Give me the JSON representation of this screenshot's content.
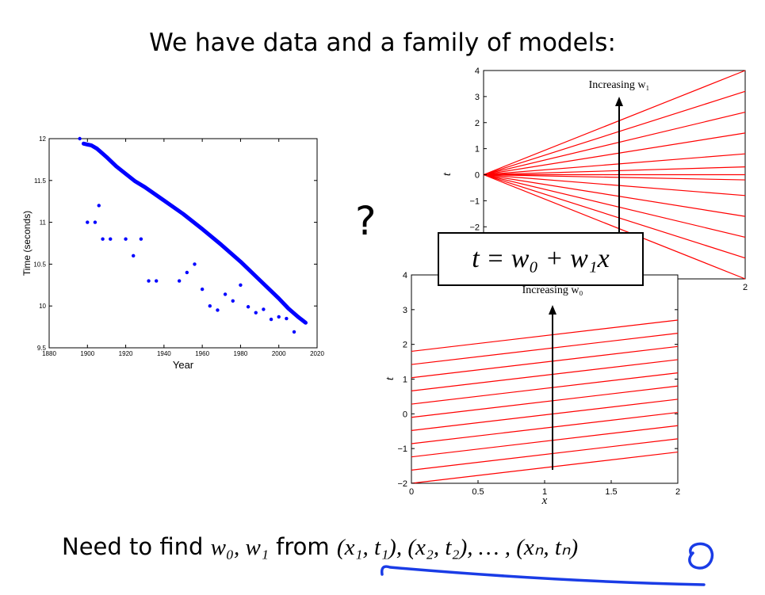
{
  "slide": {
    "title": "We have data and a family of models:",
    "question_mark": "?",
    "equation": "t = w₀ + w₁x",
    "bottom_text": {
      "prefix": "Need to find ",
      "params": "w₀, w₁",
      "middle": " from ",
      "pairs": "(x₁, t₁), (x₂, t₂), … , (xₙ, tₙ)"
    }
  },
  "colors": {
    "data_points": "#0000ff",
    "model_lines": "#ff0000",
    "annotation": "#1a3ce6"
  },
  "chart_data": [
    {
      "type": "scatter",
      "xlabel": "Year",
      "ylabel": "Time (seconds)",
      "xlim": [
        1880,
        2020
      ],
      "ylim": [
        9.5,
        12
      ],
      "xticks": [
        1880,
        1900,
        1920,
        1940,
        1960,
        1980,
        2000,
        2020
      ],
      "yticks": [
        9.5,
        10,
        10.5,
        11,
        11.5,
        12
      ],
      "series": [
        {
          "x": [
            1896,
            1900,
            1904,
            1906,
            1908,
            1912,
            1920,
            1924,
            1928,
            1932,
            1936,
            1948,
            1952,
            1956,
            1960,
            1964,
            1968,
            1972,
            1976,
            1980,
            1984,
            1988,
            1992,
            1996,
            2000,
            2004,
            2008
          ],
          "y": [
            12.0,
            11.0,
            11.0,
            11.2,
            10.8,
            10.8,
            10.8,
            10.6,
            10.8,
            10.3,
            10.3,
            10.3,
            10.4,
            10.5,
            10.2,
            10.0,
            9.95,
            10.14,
            10.06,
            10.25,
            9.99,
            9.92,
            9.96,
            9.84,
            9.87,
            9.85,
            9.69
          ]
        },
        {
          "x": [
            1898,
            1900,
            1902,
            1905,
            1910,
            1915,
            1920,
            1925,
            1930,
            1940,
            1950,
            1960,
            1970,
            1980,
            1990,
            2000,
            2005,
            2010,
            2014
          ],
          "y": [
            11.94,
            11.93,
            11.92,
            11.88,
            11.78,
            11.67,
            11.58,
            11.49,
            11.42,
            11.26,
            11.1,
            10.92,
            10.73,
            10.53,
            10.31,
            10.09,
            9.97,
            9.87,
            9.8
          ]
        }
      ]
    },
    {
      "type": "line",
      "xlabel": "",
      "ylabel": "t",
      "xlim": [
        0,
        2
      ],
      "ylim": [
        -4,
        4
      ],
      "xticks": [
        2
      ],
      "yticks": [
        4,
        3,
        2,
        1,
        0,
        -1,
        -2
      ],
      "annotation": "Increasing w₁",
      "intercept": 0,
      "slopes": [
        -2,
        -1.6,
        -1.2,
        -0.8,
        -0.4,
        -0.1,
        0,
        0.15,
        0.4,
        0.8,
        1.2,
        1.6,
        2
      ]
    },
    {
      "type": "line",
      "xlabel": "x",
      "ylabel": "t",
      "xlim": [
        0,
        2
      ],
      "ylim": [
        -2,
        4
      ],
      "xticks": [
        0,
        0.5,
        1,
        1.5,
        2
      ],
      "yticks": [
        4,
        3,
        2,
        1,
        0,
        -1,
        -2
      ],
      "annotation": "Increasing w₀",
      "slope": 0.45,
      "intercepts": [
        -2,
        -1.62,
        -1.24,
        -0.86,
        -0.48,
        -0.1,
        0.28,
        0.66,
        1.04,
        1.42,
        1.8
      ]
    }
  ]
}
